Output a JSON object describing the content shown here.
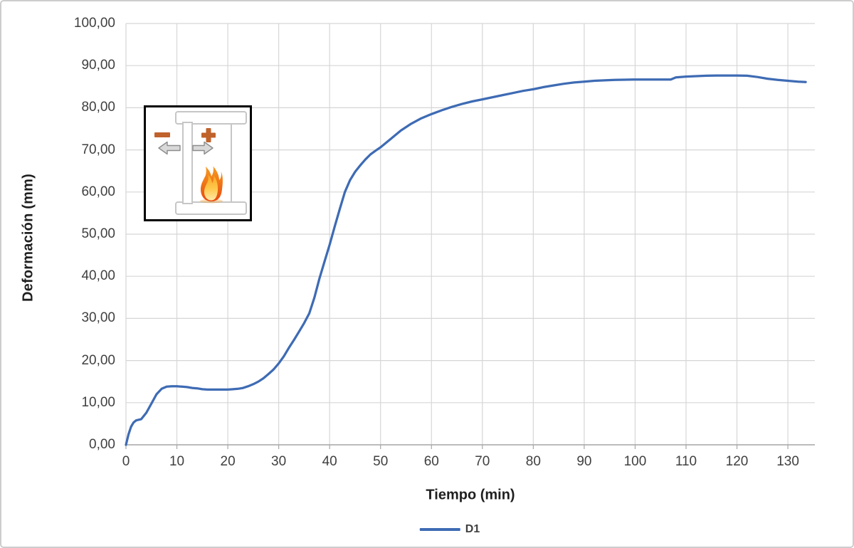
{
  "figure": {
    "y_axis_title": "Deformación (mm)",
    "x_axis_title": "Tiempo (min)"
  },
  "legend": {
    "series_label": "D1",
    "position": "bottom"
  },
  "axes": {
    "x_tick_values": [
      0,
      10,
      20,
      30,
      40,
      50,
      60,
      70,
      80,
      90,
      100,
      110,
      120,
      130
    ],
    "x_tick_labels": [
      "0",
      "10",
      "20",
      "30",
      "40",
      "50",
      "60",
      "70",
      "80",
      "90",
      "100",
      "110",
      "120",
      "130"
    ],
    "y_tick_values": [
      0,
      10,
      20,
      30,
      40,
      50,
      60,
      70,
      80,
      90,
      100
    ],
    "y_tick_labels": [
      "0,00",
      "10,00",
      "20,00",
      "30,00",
      "40,00",
      "50,00",
      "60,00",
      "70,00",
      "80,00",
      "90,00",
      "100,00"
    ]
  },
  "colors": {
    "line": "#3E6BB4",
    "gridline": "#D6D6D6",
    "axis_line": "#A6A6A6",
    "tick_text": "#404040",
    "title_text": "#1F1F1F",
    "accent_orange": "#C0622B",
    "inset_outline": "#C6C6C6",
    "arrow_fill": "#D9D9D9",
    "arrow_stroke": "#8C8C8C"
  },
  "inset_icons": {
    "minus": "minus-icon",
    "plus": "plus-icon",
    "arrow_left": "left-arrow-icon",
    "arrow_right": "right-arrow-icon",
    "flame": "flame-icon",
    "section": "beam-section-diagram"
  },
  "chart_data": {
    "type": "line",
    "title": "",
    "xlabel": "Tiempo (min)",
    "ylabel": "Deformación (mm)",
    "xlim": [
      0,
      135.3
    ],
    "ylim": [
      0,
      100
    ],
    "grid": true,
    "legend_position": "bottom",
    "series": [
      {
        "name": "D1",
        "color": "#3E6BB4",
        "x": [
          0,
          0.5,
          1,
          1.5,
          2,
          3,
          4,
          5,
          6,
          7,
          8,
          9,
          10,
          11,
          12,
          13,
          14,
          15,
          16,
          17,
          18,
          19,
          20,
          21,
          22,
          23,
          24,
          25,
          26,
          27,
          28,
          29,
          30,
          31,
          32,
          33,
          34,
          35,
          36,
          37,
          38,
          39,
          40,
          41,
          42,
          43,
          44,
          45,
          46,
          47,
          48,
          49,
          50,
          52,
          54,
          56,
          58,
          60,
          62,
          64,
          66,
          68,
          70,
          72,
          74,
          76,
          78,
          80,
          82,
          84,
          86,
          88,
          90,
          92,
          94,
          96,
          98,
          100,
          102,
          104,
          106,
          107,
          108,
          110,
          112,
          114,
          116,
          118,
          120,
          122,
          124,
          126,
          128,
          130,
          132,
          133.5
        ],
        "y": [
          0,
          2.5,
          4.3,
          5.3,
          5.8,
          6.1,
          7.6,
          9.8,
          12.0,
          13.3,
          13.8,
          13.9,
          13.9,
          13.8,
          13.7,
          13.5,
          13.4,
          13.2,
          13.1,
          13.1,
          13.1,
          13.1,
          13.1,
          13.2,
          13.3,
          13.5,
          13.9,
          14.4,
          15.0,
          15.8,
          16.8,
          17.9,
          19.3,
          21.0,
          23.0,
          24.9,
          26.9,
          28.9,
          31.2,
          34.9,
          39.5,
          43.5,
          47.5,
          51.8,
          56.0,
          60.0,
          62.8,
          64.8,
          66.3,
          67.7,
          68.9,
          69.8,
          70.6,
          72.6,
          74.6,
          76.2,
          77.5,
          78.5,
          79.4,
          80.2,
          80.9,
          81.5,
          82.0,
          82.5,
          83.0,
          83.5,
          84.0,
          84.4,
          84.9,
          85.3,
          85.7,
          86.0,
          86.2,
          86.4,
          86.5,
          86.6,
          86.65,
          86.7,
          86.7,
          86.7,
          86.7,
          86.7,
          87.2,
          87.4,
          87.5,
          87.6,
          87.65,
          87.65,
          87.65,
          87.6,
          87.3,
          86.9,
          86.6,
          86.4,
          86.2,
          86.1
        ]
      }
    ]
  }
}
